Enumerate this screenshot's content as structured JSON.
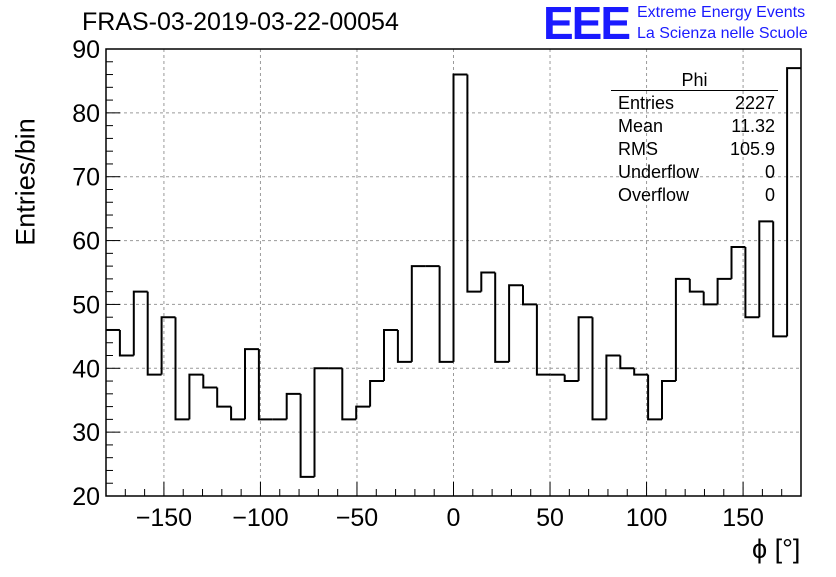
{
  "header": {
    "title": "FRAS-03-2019-03-22-00054",
    "logo_text": "EEE",
    "logo_line1": "Extreme Energy Events",
    "logo_line2": "La Scienza nelle Scuole"
  },
  "stats_box": {
    "title": "Phi",
    "rows": [
      {
        "label": "Entries",
        "value": "2227"
      },
      {
        "label": "Mean",
        "value": "11.32"
      },
      {
        "label": "RMS",
        "value": "105.9"
      },
      {
        "label": "Underflow",
        "value": "0"
      },
      {
        "label": "Overflow",
        "value": "0"
      }
    ]
  },
  "chart_data": {
    "type": "histogram",
    "title": "FRAS-03-2019-03-22-00054",
    "xlabel": "ϕ [°]",
    "ylabel": "Entries/bin",
    "xlim": [
      -180,
      180
    ],
    "ylim": [
      20,
      90
    ],
    "bin_width": 7.2,
    "grid": true,
    "x_ticks": [
      -150,
      -100,
      -50,
      0,
      50,
      100,
      150
    ],
    "x_tick_labels": [
      "−150",
      "−100",
      "−50",
      "0",
      "50",
      "100",
      "150"
    ],
    "y_ticks": [
      20,
      30,
      40,
      50,
      60,
      70,
      80,
      90
    ],
    "y_tick_labels": [
      "20",
      "30",
      "40",
      "50",
      "60",
      "70",
      "80",
      "90"
    ],
    "bin_edges_start": -180,
    "values": [
      46,
      42,
      52,
      39,
      48,
      32,
      39,
      37,
      34,
      32,
      43,
      32,
      32,
      36,
      23,
      40,
      40,
      32,
      34,
      38,
      46,
      41,
      56,
      56,
      41,
      86,
      52,
      55,
      41,
      53,
      50,
      39,
      39,
      38,
      48,
      32,
      42,
      40,
      39,
      32,
      38,
      54,
      52,
      50,
      54,
      59,
      48,
      63,
      45,
      87
    ],
    "line_color": "#000000"
  }
}
